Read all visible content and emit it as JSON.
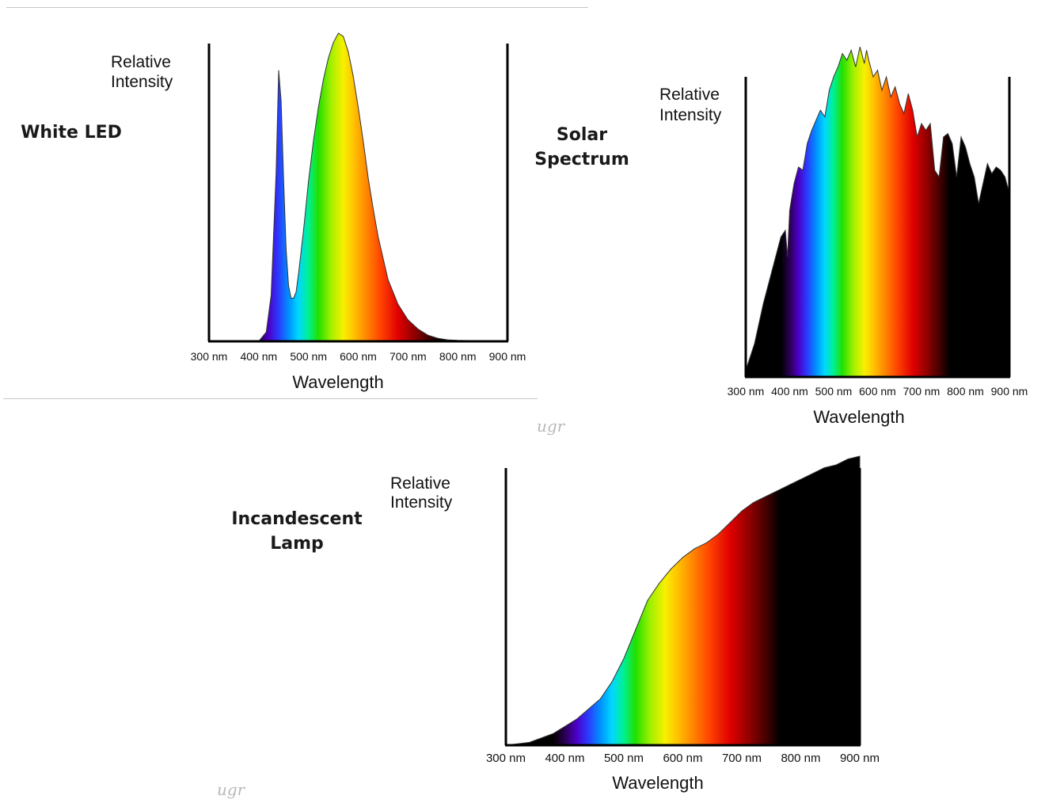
{
  "colors": {
    "axis": "#000000",
    "rule": "#c8c8c8",
    "beyond_visible": "#000000"
  },
  "watermarks": [
    "ugr",
    "ugr"
  ],
  "chart_data": [
    {
      "type": "area",
      "title": "White LED",
      "xlabel": "Wavelength",
      "ylabel": [
        "Relative",
        "Intensity"
      ],
      "x_ticks": [
        "300 nm",
        "400 nm",
        "500 nm",
        "600 nm",
        "700 nm",
        "800 nm",
        "900 nm"
      ],
      "xlim": [
        300,
        900
      ],
      "ylim": [
        0,
        1.0
      ],
      "grid": false,
      "fill": "spectrum",
      "x": [
        300,
        400,
        415,
        425,
        435,
        440,
        445,
        450,
        455,
        460,
        465,
        470,
        475,
        480,
        490,
        500,
        510,
        520,
        530,
        540,
        550,
        560,
        570,
        580,
        590,
        600,
        610,
        620,
        630,
        640,
        650,
        660,
        680,
        700,
        720,
        740,
        760,
        780,
        800,
        900
      ],
      "y": [
        0,
        0,
        0.03,
        0.15,
        0.55,
        0.88,
        0.78,
        0.52,
        0.3,
        0.18,
        0.14,
        0.14,
        0.16,
        0.22,
        0.36,
        0.52,
        0.65,
        0.76,
        0.85,
        0.92,
        0.97,
        1.0,
        0.99,
        0.94,
        0.86,
        0.76,
        0.65,
        0.53,
        0.43,
        0.34,
        0.27,
        0.2,
        0.12,
        0.07,
        0.04,
        0.02,
        0.01,
        0.005,
        0.003,
        0
      ]
    },
    {
      "type": "area",
      "title": "Solar Spectrum",
      "xlabel": "Wavelength",
      "ylabel": [
        "Relative",
        "Intensity"
      ],
      "x_ticks": [
        "300 nm",
        "400 nm",
        "500 nm",
        "600 nm",
        "700 nm",
        "800 nm",
        "900 nm"
      ],
      "xlim": [
        300,
        900
      ],
      "ylim": [
        0,
        1.0
      ],
      "grid": false,
      "fill": "spectrum",
      "x": [
        300,
        320,
        340,
        360,
        380,
        390,
        395,
        400,
        410,
        420,
        430,
        440,
        450,
        460,
        470,
        480,
        490,
        500,
        510,
        520,
        530,
        540,
        550,
        560,
        570,
        575,
        580,
        590,
        600,
        610,
        620,
        630,
        640,
        650,
        660,
        670,
        680,
        690,
        700,
        710,
        720,
        730,
        740,
        750,
        760,
        770,
        780,
        790,
        800,
        810,
        820,
        830,
        840,
        850,
        860,
        870,
        880,
        890,
        900
      ],
      "y": [
        0.02,
        0.1,
        0.22,
        0.32,
        0.42,
        0.44,
        0.36,
        0.5,
        0.58,
        0.63,
        0.62,
        0.7,
        0.74,
        0.77,
        0.8,
        0.78,
        0.86,
        0.9,
        0.93,
        0.97,
        0.95,
        0.98,
        0.93,
        0.99,
        0.94,
        0.98,
        0.95,
        0.9,
        0.92,
        0.86,
        0.9,
        0.84,
        0.87,
        0.82,
        0.79,
        0.85,
        0.8,
        0.72,
        0.76,
        0.74,
        0.76,
        0.62,
        0.6,
        0.72,
        0.73,
        0.7,
        0.6,
        0.72,
        0.69,
        0.64,
        0.6,
        0.52,
        0.58,
        0.64,
        0.61,
        0.63,
        0.62,
        0.6,
        0.55
      ]
    },
    {
      "type": "area",
      "title": "Incandescent Lamp",
      "xlabel": "Wavelength",
      "ylabel": [
        "Relative",
        "Intensity"
      ],
      "x_ticks": [
        "300 nm",
        "400 nm",
        "500 nm",
        "600 nm",
        "700 nm",
        "800 nm",
        "900 nm"
      ],
      "xlim": [
        300,
        900
      ],
      "ylim": [
        0,
        1.0
      ],
      "grid": false,
      "fill": "spectrum",
      "x": [
        300,
        340,
        380,
        420,
        460,
        480,
        500,
        520,
        540,
        560,
        580,
        600,
        620,
        640,
        660,
        680,
        700,
        720,
        740,
        760,
        780,
        800,
        820,
        840,
        860,
        880,
        900
      ],
      "y": [
        0.0,
        0.01,
        0.04,
        0.09,
        0.16,
        0.22,
        0.3,
        0.4,
        0.5,
        0.56,
        0.61,
        0.65,
        0.68,
        0.7,
        0.73,
        0.77,
        0.81,
        0.84,
        0.86,
        0.88,
        0.9,
        0.92,
        0.94,
        0.96,
        0.97,
        0.99,
        1.0
      ]
    }
  ]
}
